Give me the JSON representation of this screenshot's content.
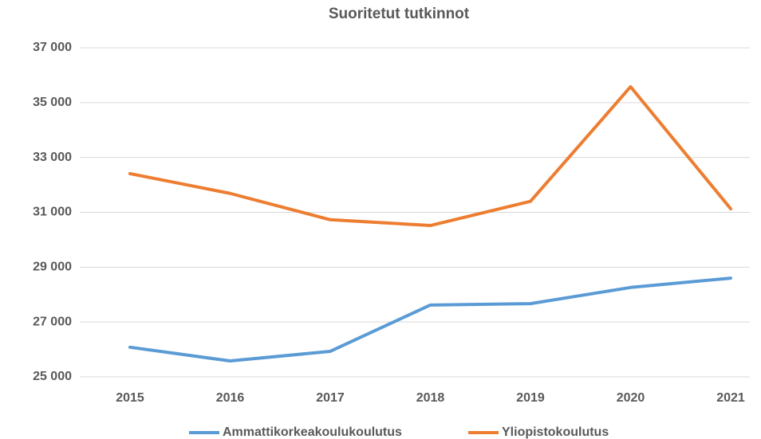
{
  "chart_data": {
    "type": "line",
    "title": "Suoritetut tutkinnot",
    "categories": [
      "2015",
      "2016",
      "2017",
      "2018",
      "2019",
      "2020",
      "2021"
    ],
    "series": [
      {
        "name": "Ammattikorkeakoulukoulutus",
        "color": "#5b9bd5",
        "values": [
          26080,
          25580,
          25930,
          27620,
          27670,
          28260,
          28600
        ]
      },
      {
        "name": "Yliopistokoulutus",
        "color": "#ed7d31",
        "values": [
          32410,
          31690,
          30730,
          30520,
          31400,
          35580,
          31130
        ]
      }
    ],
    "ylim": [
      25000,
      37000
    ],
    "yticks": [
      {
        "value": 25000,
        "label": "25 000"
      },
      {
        "value": 27000,
        "label": "27 000"
      },
      {
        "value": 29000,
        "label": "29 000"
      },
      {
        "value": 31000,
        "label": "31 000"
      },
      {
        "value": 33000,
        "label": "33 000"
      },
      {
        "value": 35000,
        "label": "35 000"
      },
      {
        "value": 37000,
        "label": "37 000"
      }
    ],
    "grid": true,
    "legend": "bottom"
  }
}
